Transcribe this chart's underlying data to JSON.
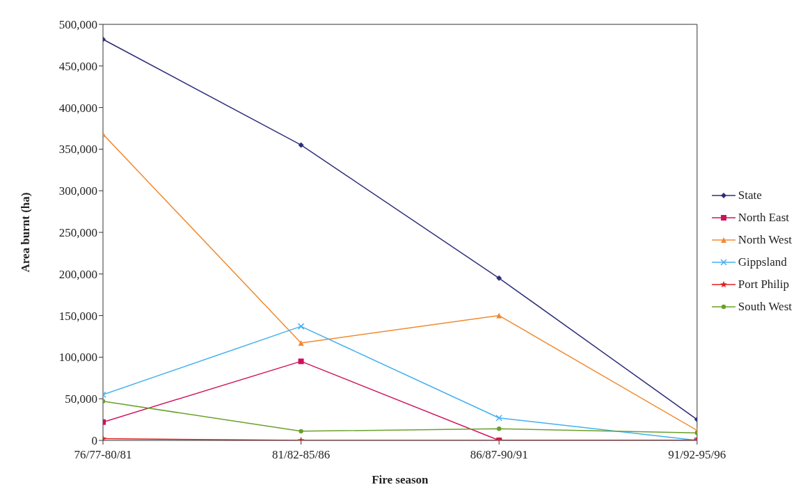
{
  "chart_data": {
    "type": "line",
    "xlabel": "Fire season",
    "ylabel": "Area burnt (ha)",
    "categories": [
      "76/77-80/81",
      "81/82-85/86",
      "86/87-90/91",
      "91/92-95/96"
    ],
    "ylim": [
      0,
      500000
    ],
    "yticks": [
      0,
      {
        "value": 50000,
        "label": "50,000"
      },
      {
        "value": 100000,
        "label": "100,000"
      },
      {
        "value": 150000,
        "label": "150,000"
      },
      {
        "value": 200000,
        "label": "200,000"
      },
      {
        "value": 250000,
        "label": "250,000"
      },
      {
        "value": 300000,
        "label": "300,000"
      },
      {
        "value": 350000,
        "label": "350,000"
      },
      {
        "value": 400000,
        "label": "400,000"
      },
      {
        "value": 450000,
        "label": "450,000"
      },
      {
        "value": 500000,
        "label": "500,000"
      }
    ],
    "grid": false,
    "legend": "right",
    "line_style": "solid",
    "series": [
      {
        "name": "State",
        "color": "#2e2f7a",
        "marker": "diamond",
        "values": [
          482000,
          355000,
          195000,
          25000
        ]
      },
      {
        "name": "North East",
        "color": "#d0105a",
        "marker": "square",
        "values": [
          22000,
          95000,
          0,
          0
        ]
      },
      {
        "name": "North West",
        "color": "#f08a30",
        "marker": "triangle",
        "values": [
          368000,
          117000,
          150000,
          12000
        ]
      },
      {
        "name": "Gippsland",
        "color": "#40b0f0",
        "marker": "cross",
        "values": [
          55000,
          137000,
          27000,
          0
        ]
      },
      {
        "name": "Port Philip",
        "color": "#e02020",
        "marker": "star",
        "values": [
          2000,
          0,
          0,
          0
        ]
      },
      {
        "name": "South West",
        "color": "#6aa02a",
        "marker": "circle",
        "values": [
          47000,
          11000,
          14000,
          9000
        ]
      }
    ]
  }
}
